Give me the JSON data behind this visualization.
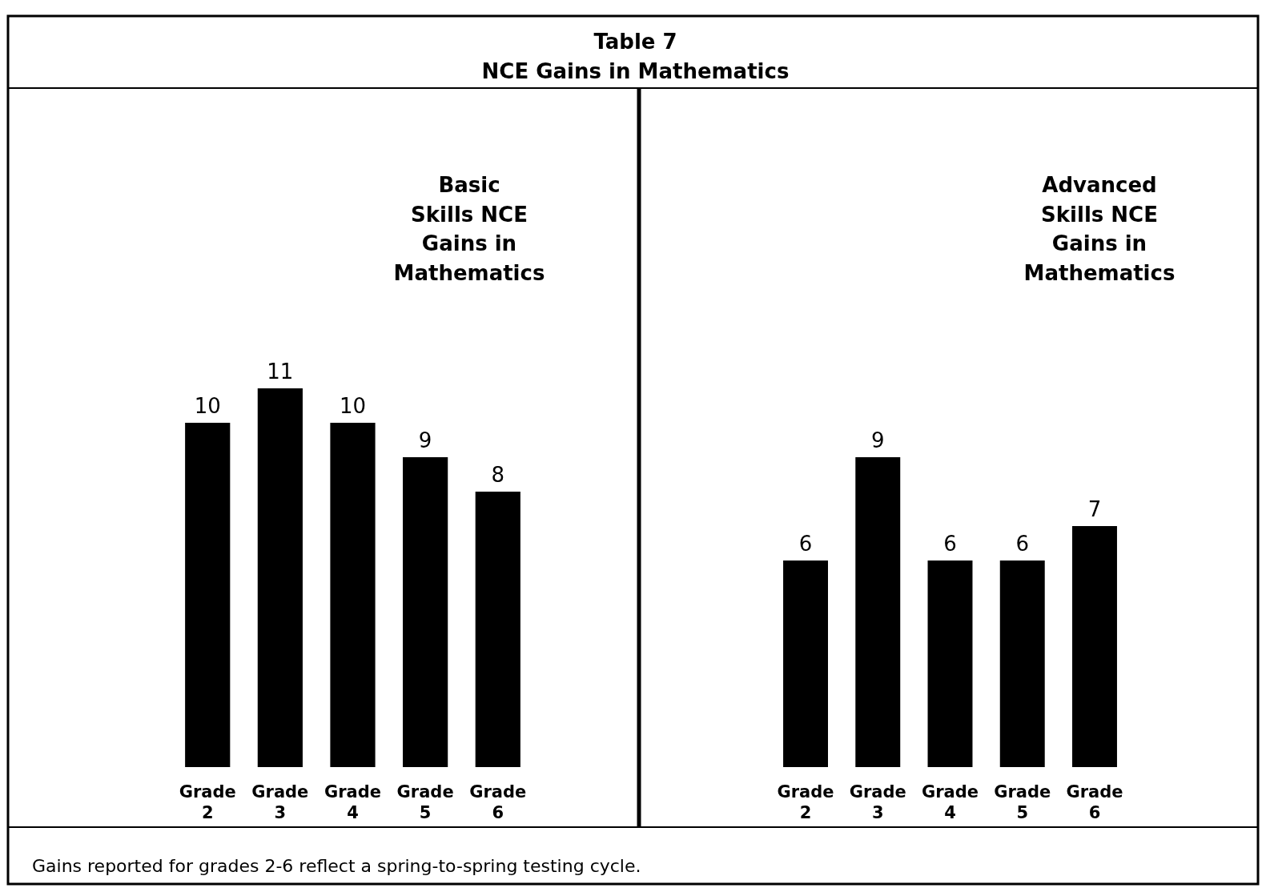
{
  "chart_data": [
    {
      "type": "bar",
      "title": "Basic Skills NCE Gains in Mathematics",
      "categories": [
        "Grade 2",
        "Grade 3",
        "Grade 4",
        "Grade 5",
        "Grade 6"
      ],
      "values": [
        10,
        11,
        10,
        9,
        8
      ],
      "color": "#000000",
      "data_labels": true,
      "annotations": [
        "Table 7",
        "NCE Gains in Mathematics",
        "Gains reported for grades 2-6 reflect a spring-to-spring testing cycle."
      ]
    },
    {
      "type": "bar",
      "title": "Advanced Skills NCE Gains in Mathematics",
      "categories": [
        "Grade 2",
        "Grade 3",
        "Grade 4",
        "Grade 5",
        "Grade 6"
      ],
      "values": [
        6,
        9,
        6,
        6,
        7
      ],
      "color": "#000000",
      "data_labels": true
    }
  ]
}
